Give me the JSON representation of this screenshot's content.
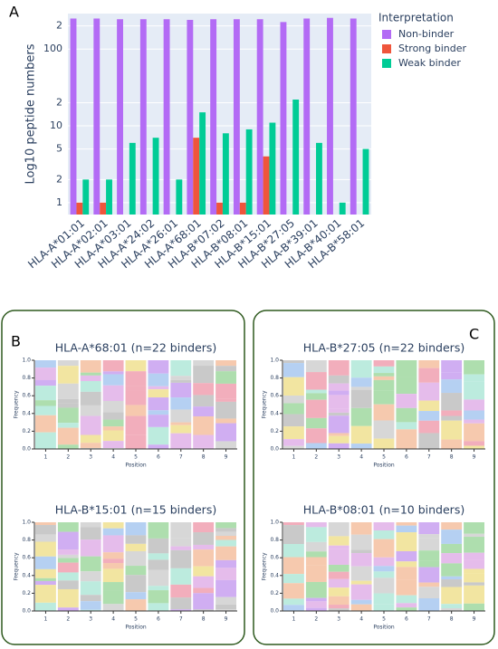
{
  "panel_labels": [
    "A",
    "B",
    "C"
  ],
  "chart_data": [
    {
      "type": "bar",
      "ylabel": "Log10 peptide numbers",
      "log": true,
      "legend_title": "Interpretation",
      "legend": "right",
      "background": "#e5ecf6",
      "categories": [
        "HLA-A*01:01",
        "HLA-A*02:01",
        "HLA-A*03:01",
        "HLA-A*24:02",
        "HLA-A*26:01",
        "HLA-A*68:01",
        "HLA-B*07:02",
        "HLA-B*08:01",
        "HLA-B*15:01",
        "HLA-B*27:05",
        "HLA-B*39:01",
        "HLA-B*40:01",
        "HLA-B*58:01"
      ],
      "series": [
        {
          "name": "Non-binder",
          "color": "#b36bf5",
          "values": [
            250,
            250,
            245,
            245,
            245,
            240,
            245,
            245,
            245,
            225,
            250,
            255,
            250
          ]
        },
        {
          "name": "Strong binder",
          "color": "#ef553b",
          "values": [
            1,
            1,
            null,
            null,
            null,
            7,
            1,
            1,
            4,
            null,
            null,
            null,
            null
          ]
        },
        {
          "name": "Weak binder",
          "color": "#00cc96",
          "values": [
            2,
            2,
            6,
            7,
            2,
            15,
            8,
            9,
            11,
            22,
            6,
            1,
            5
          ]
        }
      ],
      "ylim": [
        0.7,
        290
      ],
      "yticks": [
        1,
        2,
        5,
        10,
        {
          "value": 20,
          "label": "2"
        },
        100,
        {
          "value": 200,
          "label": "2"
        }
      ]
    },
    {
      "type": "logo",
      "title": "HLA-A*68:01 (n=22 binders)",
      "xlabel": "Position",
      "ylabel": "Frequency",
      "yticks": [
        {
          "value": 0,
          "label": "0.0"
        },
        {
          "value": 0.2,
          "label": "0.2"
        },
        {
          "value": 0.4,
          "label": "0.4"
        },
        {
          "value": 0.6,
          "label": "0.6"
        },
        {
          "value": 0.8,
          "label": "0.8"
        },
        {
          "value": 1,
          "label": "1.0"
        }
      ],
      "xticks": [
        1,
        2,
        3,
        4,
        5,
        6,
        7,
        8,
        9
      ],
      "ylim": [
        0,
        1
      ]
    },
    {
      "type": "logo",
      "title": "HLA-B*15:01 (n=15 binders)",
      "xlabel": "Position",
      "ylabel": "Frequency",
      "yticks": [
        {
          "value": 0,
          "label": "0.0"
        },
        {
          "value": 0.2,
          "label": "0.2"
        },
        {
          "value": 0.4,
          "label": "0.4"
        },
        {
          "value": 0.6,
          "label": "0.6"
        },
        {
          "value": 0.8,
          "label": "0.8"
        },
        {
          "value": 1,
          "label": "1.0"
        }
      ],
      "xticks": [
        1,
        2,
        3,
        4,
        5,
        6,
        7,
        8,
        9
      ],
      "ylim": [
        0,
        1
      ]
    },
    {
      "type": "logo",
      "title": "HLA-B*27:05 (n=22 binders)",
      "xlabel": "Position",
      "ylabel": "Frequency",
      "yticks": [
        {
          "value": 0,
          "label": "0.0"
        },
        {
          "value": 0.2,
          "label": "0.2"
        },
        {
          "value": 0.4,
          "label": "0.4"
        },
        {
          "value": 0.6,
          "label": "0.6"
        },
        {
          "value": 0.8,
          "label": "0.8"
        },
        {
          "value": 1,
          "label": "1.0"
        }
      ],
      "xticks": [
        1,
        2,
        3,
        4,
        5,
        6,
        7,
        8,
        9
      ],
      "ylim": [
        0,
        1
      ]
    },
    {
      "type": "logo",
      "title": "HLA-B*08:01 (n=10 binders)",
      "xlabel": "Position",
      "ylabel": "Frequency",
      "yticks": [
        {
          "value": 0,
          "label": "0.0"
        },
        {
          "value": 0.2,
          "label": "0.2"
        },
        {
          "value": 0.4,
          "label": "0.4"
        },
        {
          "value": 0.6,
          "label": "0.6"
        },
        {
          "value": 0.8,
          "label": "0.8"
        },
        {
          "value": 1,
          "label": "1.0"
        }
      ],
      "xticks": [
        1,
        2,
        3,
        4,
        5,
        6,
        7,
        8,
        9
      ],
      "ylim": [
        0,
        1
      ]
    }
  ]
}
